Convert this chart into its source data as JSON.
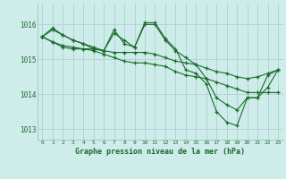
{
  "title": "Graphe pression niveau de la mer (hPa)",
  "background_color": "#ceecea",
  "plot_bg_color": "#ceecea",
  "grid_color": "#aaccca",
  "line_color": "#1a6b2a",
  "marker_color": "#1a6b2a",
  "ylim": [
    1012.7,
    1016.6
  ],
  "yticks": [
    1013,
    1014,
    1015,
    1016
  ],
  "xlim": [
    -0.5,
    23.5
  ],
  "xticks": [
    0,
    1,
    2,
    3,
    4,
    5,
    6,
    7,
    8,
    9,
    10,
    11,
    12,
    13,
    14,
    15,
    16,
    17,
    18,
    19,
    20,
    21,
    22,
    23
  ],
  "series": [
    [
      1015.65,
      1015.85,
      1015.7,
      1015.55,
      1015.45,
      1015.3,
      1015.25,
      1015.75,
      1015.55,
      1015.35,
      1016.0,
      1016.0,
      1015.55,
      1015.25,
      1015.05,
      1014.85,
      1014.45,
      1013.9,
      1013.7,
      1013.55,
      1013.9,
      1013.9,
      1014.55,
      1014.7
    ],
    [
      1015.65,
      1015.9,
      1015.7,
      1015.55,
      1015.45,
      1015.35,
      1015.25,
      1015.85,
      1015.45,
      1015.35,
      1016.05,
      1016.05,
      1015.6,
      1015.3,
      1014.7,
      1014.6,
      1014.3,
      1013.5,
      1013.2,
      1013.1,
      1013.9,
      1013.9,
      1014.2,
      1014.7
    ],
    [
      1015.65,
      1015.5,
      1015.4,
      1015.35,
      1015.3,
      1015.3,
      1015.25,
      1015.2,
      1015.2,
      1015.2,
      1015.2,
      1015.15,
      1015.05,
      1014.95,
      1014.9,
      1014.85,
      1014.75,
      1014.65,
      1014.6,
      1014.5,
      1014.45,
      1014.5,
      1014.6,
      1014.7
    ],
    [
      1015.65,
      1015.5,
      1015.35,
      1015.3,
      1015.3,
      1015.25,
      1015.15,
      1015.05,
      1014.95,
      1014.9,
      1014.9,
      1014.85,
      1014.8,
      1014.65,
      1014.55,
      1014.5,
      1014.45,
      1014.35,
      1014.25,
      1014.15,
      1014.05,
      1014.05,
      1014.05,
      1014.05
    ]
  ]
}
